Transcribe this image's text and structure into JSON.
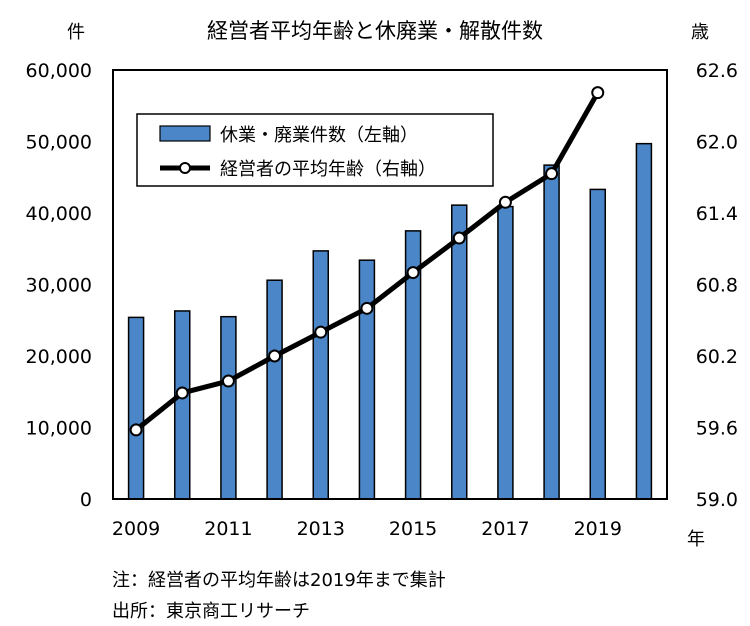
{
  "chart_data": {
    "type": "bar+line",
    "title": "経営者平均年齢と休廃業・解散件数",
    "left_unit": "件",
    "right_unit": "歳",
    "x_unit": "年",
    "categories": [
      2009,
      2010,
      2011,
      2012,
      2013,
      2014,
      2015,
      2016,
      2017,
      2018,
      2019,
      2020
    ],
    "x_tick_labels": [
      "2009",
      "2011",
      "2013",
      "2015",
      "2017",
      "2019"
    ],
    "y_left_ticks": [
      "0",
      "10,000",
      "20,000",
      "30,000",
      "40,000",
      "50,000",
      "60,000"
    ],
    "y_right_ticks": [
      "59.0",
      "59.6",
      "60.2",
      "60.8",
      "61.4",
      "62.0",
      "62.6"
    ],
    "ylim_left": [
      0,
      60000
    ],
    "ylim_right": [
      59.0,
      62.6
    ],
    "legend_position": "top-left",
    "series": [
      {
        "name": "休業・廃業件数（左軸）",
        "type": "bar",
        "axis": "left",
        "color": "#4a86c8",
        "values": [
          25400,
          26300,
          25500,
          30600,
          34700,
          33400,
          37500,
          41100,
          40900,
          46700,
          43300,
          49700
        ]
      },
      {
        "name": "経営者の平均年齢（右軸）",
        "type": "line",
        "axis": "right",
        "color": "#000000",
        "values": [
          59.58,
          59.89,
          59.99,
          60.2,
          60.4,
          60.6,
          60.9,
          61.19,
          61.49,
          61.73,
          62.41,
          null
        ]
      }
    ]
  },
  "notes": {
    "line1": "注：経営者の平均年齢は2019年まで集計",
    "line2": "出所：東京商工リサーチ"
  }
}
